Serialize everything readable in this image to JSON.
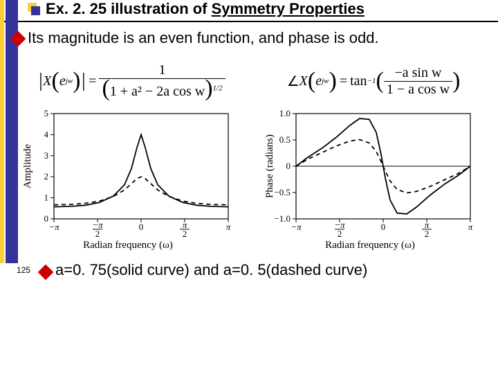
{
  "title": {
    "prefix": "Ex. 2. 25 illustration of ",
    "underlined": "Symmetry Properties"
  },
  "bullet": {
    "text": "Its magnitude is an even function, and phase is odd."
  },
  "equations": {
    "mag_lhs_var": "X",
    "mag_lhs_arg": "e",
    "mag_lhs_exp": "jw",
    "mag_num": "1",
    "mag_den_inner": "1 + a² − 2a cos w",
    "mag_den_exp": "1/2",
    "phase_lhs_op": "∠",
    "phase_lhs_var": "X",
    "phase_lhs_arg": "e",
    "phase_lhs_exp": "jw",
    "phase_rhs_fn": "tan",
    "phase_rhs_fn_exp": "−1",
    "phase_num": "−a sin w",
    "phase_den": "1 − a cos w"
  },
  "charts": {
    "amplitude": {
      "type": "line",
      "xlabel": "Radian frequency (ω)",
      "ylabel": "Amplitude",
      "xlim": [
        -3.1416,
        3.1416
      ],
      "ylim": [
        0,
        5
      ],
      "xticks": [
        -3.1416,
        -1.5708,
        0,
        1.5708,
        3.1416
      ],
      "xticklabels": [
        "−π",
        "−π/2",
        "0",
        "π/2",
        "π"
      ],
      "yticks": [
        0,
        1,
        2,
        3,
        4,
        5
      ],
      "yticklabels": [
        "0",
        "1",
        "2",
        "3",
        "4",
        "5"
      ],
      "series": [
        {
          "label": "a=0.75",
          "dash": "solid",
          "color": "#000000",
          "line_width": 1.8,
          "x": [
            -3.1416,
            -2.5,
            -2.0,
            -1.5,
            -1.0,
            -0.6,
            -0.35,
            -0.15,
            0,
            0.15,
            0.35,
            0.6,
            1.0,
            1.5,
            2.0,
            2.5,
            3.1416
          ],
          "y": [
            0.571,
            0.594,
            0.649,
            0.779,
            1.081,
            1.614,
            2.389,
            3.381,
            4.0,
            3.381,
            2.389,
            1.614,
            1.081,
            0.779,
            0.649,
            0.594,
            0.571
          ]
        },
        {
          "label": "a=0.5",
          "dash": "6,5",
          "color": "#000000",
          "line_width": 1.8,
          "x": [
            -3.1416,
            -2.5,
            -2.0,
            -1.5,
            -1.0,
            -0.6,
            -0.35,
            -0.15,
            0,
            0.15,
            0.35,
            0.6,
            1.0,
            1.5,
            2.0,
            2.5,
            3.1416
          ],
          "y": [
            0.667,
            0.689,
            0.739,
            0.847,
            1.066,
            1.371,
            1.672,
            1.91,
            2.0,
            1.91,
            1.672,
            1.371,
            1.066,
            0.847,
            0.739,
            0.689,
            0.667
          ]
        }
      ],
      "axis_color": "#000000",
      "background": "#ffffff",
      "tick_fontsize": 13,
      "label_fontsize": 15
    },
    "phase": {
      "type": "line",
      "xlabel": "Radian frequency (ω)",
      "ylabel": "Phase (radians)",
      "xlim": [
        -3.1416,
        3.1416
      ],
      "ylim": [
        -1.0,
        1.0
      ],
      "xticks": [
        -3.1416,
        -1.5708,
        0,
        1.5708,
        3.1416
      ],
      "xticklabels": [
        "−π",
        "−π/2",
        "0",
        "π/2",
        "π"
      ],
      "yticks": [
        -1.0,
        -0.5,
        0,
        0.5,
        1.0
      ],
      "yticklabels": [
        "−1.0",
        "−0.5",
        "0",
        "0.5",
        "1.0"
      ],
      "series": [
        {
          "label": "a=0.75",
          "dash": "solid",
          "color": "#000000",
          "line_width": 1.8,
          "x": [
            -3.1416,
            -2.7,
            -2.2,
            -1.7,
            -1.2,
            -0.85,
            -0.5,
            -0.25,
            -0.08,
            0,
            0.08,
            0.25,
            0.5,
            0.85,
            1.2,
            1.7,
            2.2,
            2.7,
            3.1416
          ],
          "y": [
            0,
            0.176,
            0.345,
            0.546,
            0.776,
            0.907,
            0.891,
            0.642,
            0.234,
            0,
            -0.234,
            -0.642,
            -0.891,
            -0.907,
            -0.776,
            -0.546,
            -0.345,
            -0.176,
            0
          ]
        },
        {
          "label": "a=0.5",
          "dash": "6,5",
          "color": "#000000",
          "line_width": 1.8,
          "x": [
            -3.1416,
            -2.7,
            -2.2,
            -1.7,
            -1.2,
            -0.85,
            -0.5,
            -0.25,
            -0.08,
            0,
            0.08,
            0.25,
            0.5,
            0.85,
            1.2,
            1.7,
            2.2,
            2.7,
            3.1416
          ],
          "y": [
            0,
            0.141,
            0.261,
            0.383,
            0.479,
            0.507,
            0.442,
            0.277,
            0.095,
            0,
            -0.095,
            -0.277,
            -0.442,
            -0.507,
            -0.479,
            -0.383,
            -0.261,
            -0.141,
            0
          ]
        }
      ],
      "axis_color": "#000000",
      "background": "#ffffff",
      "tick_fontsize": 13,
      "label_fontsize": 15,
      "zero_line": true
    }
  },
  "caption": {
    "text": "a=0. 75(solid curve) and a=0. 5(dashed curve)"
  },
  "page_number": "125",
  "accent_colors": {
    "yellow": "#ffcc33",
    "blue": "#333399",
    "red_diamond": "#c00000"
  }
}
